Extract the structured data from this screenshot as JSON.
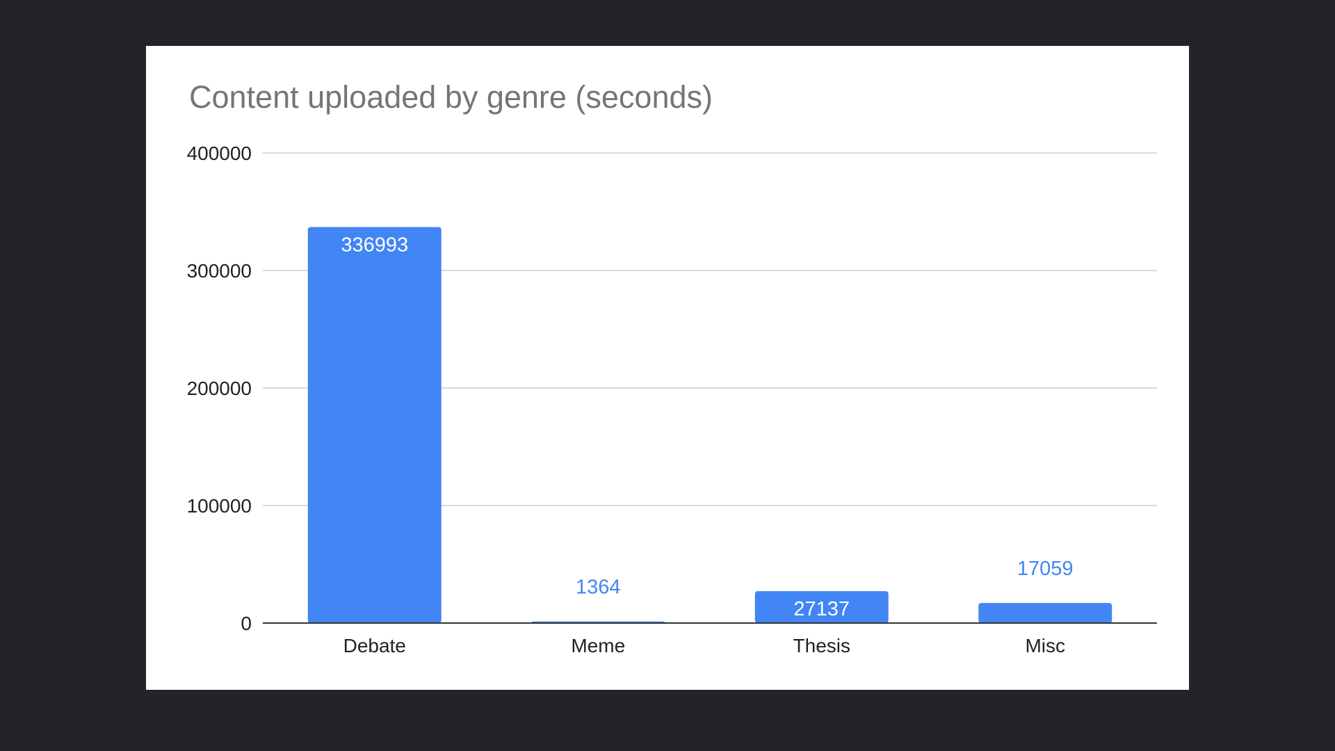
{
  "colors": {
    "background": "#222428",
    "card": "#ffffff",
    "bar": "#4285f4",
    "grid": "#d9d9d9",
    "baseline": "#333333",
    "title": "#757575",
    "label_inside": "#ffffff",
    "label_outside": "#4285f4"
  },
  "chart_data": {
    "type": "bar",
    "title": "Content uploaded by genre (seconds)",
    "xlabel": "",
    "ylabel": "",
    "categories": [
      "Debate",
      "Meme",
      "Thesis",
      "Misc"
    ],
    "values": [
      336993,
      1364,
      27137,
      17059
    ],
    "data_labels": [
      "336993",
      "1364",
      "27137",
      "17059"
    ],
    "ylim": [
      0,
      400000
    ],
    "yticks": [
      0,
      100000,
      200000,
      300000,
      400000
    ],
    "ytick_labels": [
      "0",
      "100000",
      "200000",
      "300000",
      "400000"
    ],
    "grid": true,
    "legend": "none"
  }
}
